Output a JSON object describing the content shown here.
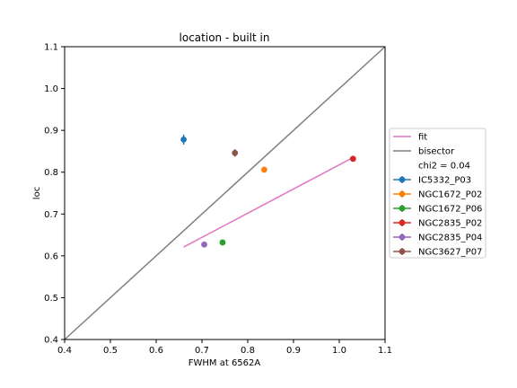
{
  "chart_data": {
    "type": "scatter",
    "title": "location - built in",
    "xlabel": "FWHM at 6562A",
    "ylabel": "loc",
    "xlim": [
      0.4,
      1.1
    ],
    "ylim": [
      0.4,
      1.1
    ],
    "xticks": [
      "0.4",
      "0.5",
      "0.6",
      "0.7",
      "0.8",
      "0.9",
      "1.0",
      "1.1"
    ],
    "yticks": [
      "0.4",
      "0.5",
      "0.6",
      "0.7",
      "0.8",
      "0.9",
      "1.0",
      "1.1"
    ],
    "grid": false,
    "legend_position": "right",
    "lines": [
      {
        "name": "fit",
        "color": "#e377c2",
        "x": [
          0.66,
          1.03
        ],
        "y": [
          0.621,
          0.835
        ]
      },
      {
        "name": "bisector",
        "color": "#7f7f7f",
        "x": [
          0.4,
          1.1
        ],
        "y": [
          0.4,
          1.1
        ]
      }
    ],
    "annotation": "chi2 = 0.04",
    "series": [
      {
        "name": "IC5332_P03",
        "color": "#1f77b4",
        "x": 0.66,
        "y": 0.878,
        "yerr": 0.012
      },
      {
        "name": "NGC1672_P02",
        "color": "#ff7f0e",
        "x": 0.836,
        "y": 0.806,
        "yerr": 0.005
      },
      {
        "name": "NGC1672_P06",
        "color": "#2ca02c",
        "x": 0.745,
        "y": 0.632,
        "yerr": 0.005
      },
      {
        "name": "NGC2835_P02",
        "color": "#d62728",
        "x": 1.03,
        "y": 0.832,
        "yerr": 0.005
      },
      {
        "name": "NGC2835_P04",
        "color": "#9467bd",
        "x": 0.705,
        "y": 0.627,
        "yerr": 0.005
      },
      {
        "name": "NGC3627_P07",
        "color": "#8c564b",
        "x": 0.772,
        "y": 0.846,
        "yerr": 0.009
      }
    ]
  }
}
